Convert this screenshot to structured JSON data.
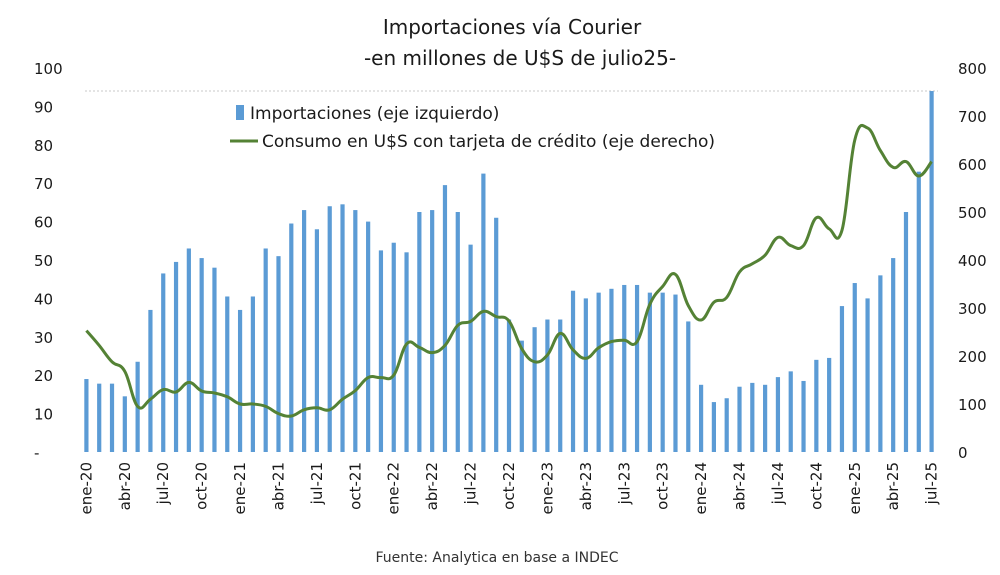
{
  "chart_data": {
    "type": "bar+line",
    "title": "Importaciones vía Courier",
    "subtitle": "-en millones de U$S de julio25-",
    "source": "Fuente: Analytica en base a INDEC",
    "left_axis": {
      "min": 0,
      "max": 100,
      "step": 10,
      "ticks": [
        "-",
        "10",
        "20",
        "30",
        "40",
        "50",
        "60",
        "70",
        "80",
        "90",
        "100"
      ]
    },
    "right_axis": {
      "min": 0,
      "max": 800,
      "step": 100,
      "ticks": [
        "0",
        "100",
        "200",
        "300",
        "400",
        "500",
        "600",
        "700",
        "800"
      ]
    },
    "x_tick_labels": [
      {
        "i": 0,
        "label": "ene-20"
      },
      {
        "i": 3,
        "label": "abr-20"
      },
      {
        "i": 6,
        "label": "jul-20"
      },
      {
        "i": 9,
        "label": "oct-20"
      },
      {
        "i": 12,
        "label": "ene-21"
      },
      {
        "i": 15,
        "label": "abr-21"
      },
      {
        "i": 18,
        "label": "jul-21"
      },
      {
        "i": 21,
        "label": "oct-21"
      },
      {
        "i": 24,
        "label": "ene-22"
      },
      {
        "i": 27,
        "label": "abr-22"
      },
      {
        "i": 30,
        "label": "jul-22"
      },
      {
        "i": 33,
        "label": "oct-22"
      },
      {
        "i": 36,
        "label": "ene-23"
      },
      {
        "i": 39,
        "label": "abr-23"
      },
      {
        "i": 42,
        "label": "jul-23"
      },
      {
        "i": 45,
        "label": "oct-23"
      },
      {
        "i": 48,
        "label": "ene-24"
      },
      {
        "i": 51,
        "label": "abr-24"
      },
      {
        "i": 54,
        "label": "jul-24"
      },
      {
        "i": 57,
        "label": "oct-24"
      },
      {
        "i": 60,
        "label": "ene-25"
      },
      {
        "i": 63,
        "label": "abr-25"
      },
      {
        "i": 66,
        "label": "jul-25"
      }
    ],
    "reference_line": {
      "axis": "left",
      "value": 94
    },
    "series": [
      {
        "name": "Importaciones (eje izquierdo)",
        "type": "bar",
        "axis": "left",
        "color": "#5b9bd5",
        "values": [
          19,
          17.8,
          17.8,
          14.5,
          23.5,
          37,
          46.5,
          49.5,
          53,
          50.5,
          48,
          40.5,
          37,
          40.5,
          53,
          51,
          59.5,
          63,
          58,
          64,
          64.5,
          63,
          60,
          52.5,
          54.5,
          52,
          62.5,
          63,
          69.5,
          62.5,
          54,
          72.5,
          61,
          34.5,
          29,
          32.5,
          34.5,
          34.5,
          42,
          40,
          41.5,
          42.5,
          43.5,
          43.5,
          41.5,
          41.5,
          41,
          34,
          17.5,
          13,
          14,
          17,
          18,
          17.5,
          19.5,
          21,
          18.5,
          24,
          24.5,
          38,
          44,
          40,
          46,
          50.5,
          62.5,
          73,
          94
        ]
      },
      {
        "name": "Consumo en U$S con tarjeta de crédito (eje derecho)",
        "type": "line",
        "axis": "right",
        "color": "#548235",
        "values": [
          253,
          222,
          188,
          168,
          95,
          110,
          130,
          125,
          145,
          127,
          123,
          115,
          100,
          100,
          95,
          80,
          75,
          88,
          92,
          88,
          110,
          128,
          155,
          155,
          160,
          225,
          218,
          207,
          222,
          264,
          272,
          293,
          282,
          273,
          215,
          188,
          202,
          247,
          213,
          195,
          217,
          230,
          233,
          230,
          308,
          345,
          370,
          305,
          275,
          312,
          322,
          375,
          392,
          410,
          447,
          430,
          430,
          488,
          465,
          462,
          650,
          675,
          628,
          593,
          605,
          575,
          605
        ]
      }
    ]
  }
}
